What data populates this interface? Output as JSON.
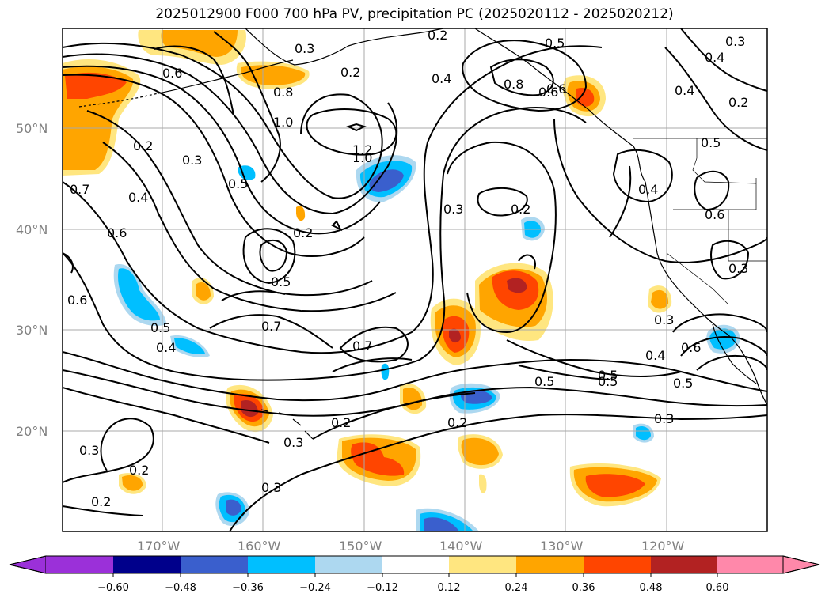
{
  "title": "2025012900 F000 700 hPa PV, precipitation PC (2025020112 - 2025020212)",
  "lat_labels": [
    "50°N",
    "40°N",
    "30°N",
    "20°N"
  ],
  "lon_labels": [
    "170°W",
    "160°W",
    "150°W",
    "140°W",
    "130°W",
    "120°W"
  ],
  "colorbar": {
    "ticks": [
      "−0.60",
      "−0.48",
      "−0.36",
      "−0.24",
      "−0.12",
      "0.12",
      "0.24",
      "0.36",
      "0.48",
      "0.60"
    ],
    "colors": [
      "#9b30d9",
      "#00008b",
      "#3a5fcd",
      "#00bfff",
      "#add8f0",
      "#ffffff",
      "#ffe680",
      "#ffa500",
      "#ff4500",
      "#b22222",
      "#ff88aa"
    ]
  },
  "contour_labels": [
    "0.6",
    "0.8",
    "1.0",
    "0.2",
    "0.3",
    "0.4",
    "0.5",
    "0.2",
    "0.3",
    "0.4",
    "0.3",
    "0.8",
    "0.6",
    "0.5",
    "0.4",
    "0.3",
    "0.5",
    "0.4",
    "0.6",
    "0.3",
    "0.5",
    "0.7",
    "0.6",
    "0.4",
    "0.3",
    "0.2",
    "0.5",
    "0.7",
    "0.5",
    "0.6",
    "0.7",
    "0.6",
    "0.4",
    "0.5",
    "0.5",
    "0.3",
    "0.4",
    "0.2",
    "0.2",
    "0.3",
    "0.2",
    "0.2",
    "0.3",
    "0.3",
    "0.2",
    "0.6",
    "1.2",
    "1.0",
    "0.5",
    "0.2",
    "0.2"
  ]
}
